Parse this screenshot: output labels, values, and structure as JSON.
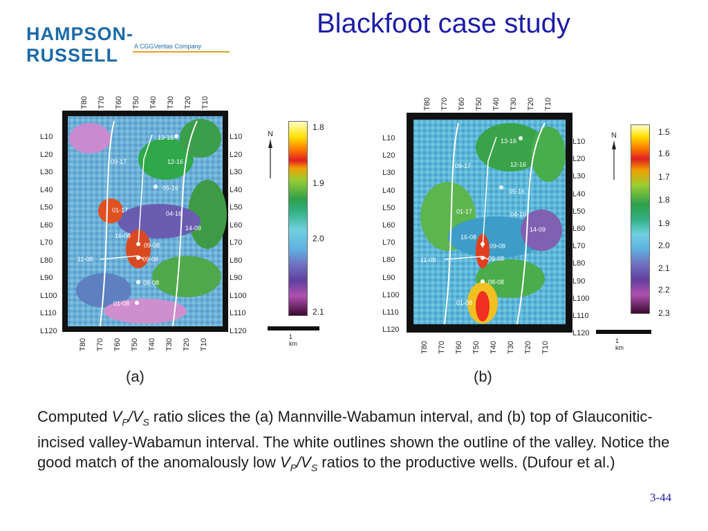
{
  "header": {
    "logo_text": "HAMPSON-RUSSELL",
    "logo_subtitle": "A CGGVeritas Company",
    "title": "Blackfoot case study"
  },
  "panels": [
    {
      "id": "a",
      "top_ticks": [
        "T80",
        "T70",
        "T60",
        "T50",
        "T40",
        "T30",
        "T20",
        "T10"
      ],
      "bottom_ticks": [
        "T80",
        "T70",
        "T60",
        "T50",
        "T40",
        "T30",
        "T20",
        "T10"
      ],
      "left_ticks": [
        "L10",
        "L20",
        "L30",
        "L40",
        "L50",
        "L60",
        "L70",
        "L80",
        "L90",
        "L100",
        "L110",
        "L120"
      ],
      "right_ticks": [
        "L10",
        "L20",
        "L30",
        "L40",
        "L50",
        "L60",
        "L70",
        "L80",
        "L90",
        "L100",
        "L110",
        "L120"
      ],
      "colorbar_labels": [
        "1.8",
        "1.9",
        "2.0",
        "2.1"
      ],
      "north": "N",
      "scale": "1 km",
      "wells": [
        "13-16",
        "09-17",
        "12-16",
        "05-16",
        "01-17",
        "04-16",
        "14-09",
        "16-08",
        "09-08",
        "11-08",
        "09-08",
        "08-08",
        "01-08"
      ],
      "label": "(a)"
    },
    {
      "id": "b",
      "top_ticks": [
        "T80",
        "T70",
        "T60",
        "T50",
        "T40",
        "T30",
        "T20",
        "T10"
      ],
      "bottom_ticks": [
        "T80",
        "T70",
        "T60",
        "T50",
        "T40",
        "T30",
        "T20",
        "T10"
      ],
      "left_ticks": [
        "L10",
        "L20",
        "L30",
        "L40",
        "L50",
        "L60",
        "L70",
        "L80",
        "L90",
        "L100",
        "L110",
        "L120"
      ],
      "right_ticks": [
        "L10",
        "L20",
        "L30",
        "L40",
        "L50",
        "L60",
        "L70",
        "L80",
        "L90",
        "L100",
        "L110",
        "L120"
      ],
      "colorbar_labels": [
        "1.5",
        "1.6",
        "1.7",
        "1.8",
        "1.9",
        "2.0",
        "2.1",
        "2.2",
        "2.3"
      ],
      "north": "N",
      "scale": "1 km",
      "wells": [
        "13-16",
        "09-17",
        "12-16",
        "05-16",
        "01-17",
        "04-16",
        "14-09",
        "16-08",
        "09-08",
        "11-08",
        "09-08",
        "08-08",
        "01-08"
      ],
      "label": "(b)"
    }
  ],
  "caption": {
    "p1": "Computed ",
    "vp": "V",
    "p_sub": "P",
    "slash": "/",
    "vs": "V",
    "s_sub": "S",
    "p2": " ratio slices the (a) Mannville-Wabamun interval, and (b) top of Glauconitic-incised valley-Wabamun interval.  The white outlines shown the outline of the valley. Notice the good match of the anomalously low ",
    "p3": " ratios to the productive wells. (Dufour et al.)"
  },
  "page_number": "3-44",
  "colors": {
    "title": "#1c1ca8",
    "logo": "#1b6aa8",
    "logo_accent": "#e0a21a"
  }
}
